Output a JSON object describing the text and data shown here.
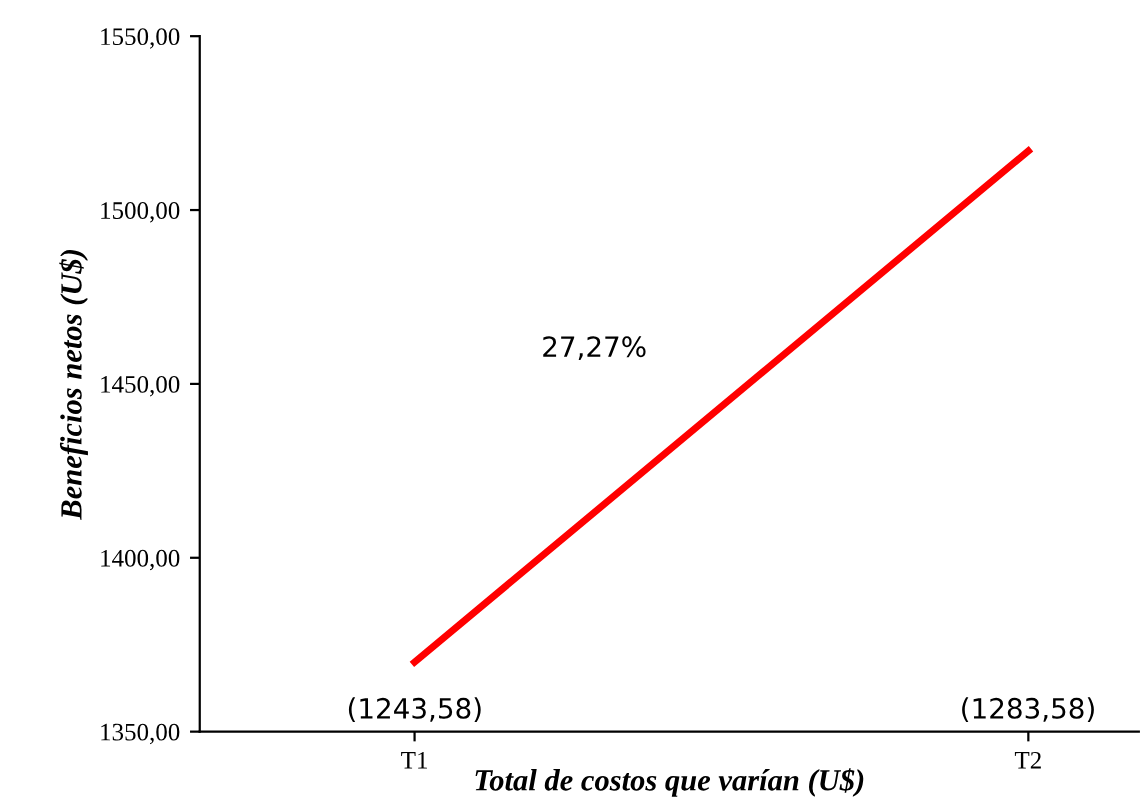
{
  "chart_data": {
    "type": "line",
    "xlabel": "Total de costos que varían (U$)",
    "ylabel": "Beneficios netos (U$)",
    "categories": [
      "T1",
      "T2"
    ],
    "series": [
      {
        "color": "#ff0000",
        "values": [
          1370,
          1517
        ]
      }
    ],
    "ylim": [
      1350,
      1550
    ],
    "yticks": [
      {
        "value": 1350,
        "label": "1350,00"
      },
      {
        "value": 1400,
        "label": "1400,00"
      },
      {
        "value": 1450,
        "label": "1450,00"
      },
      {
        "value": 1500,
        "label": "1500,00"
      },
      {
        "value": 1550,
        "label": "1550,00"
      }
    ],
    "annotations": [
      "(1243,58)",
      "(1283,58)",
      "27,27%"
    ],
    "grid": false,
    "legend": false,
    "marker": "none",
    "line_style": "solid"
  }
}
